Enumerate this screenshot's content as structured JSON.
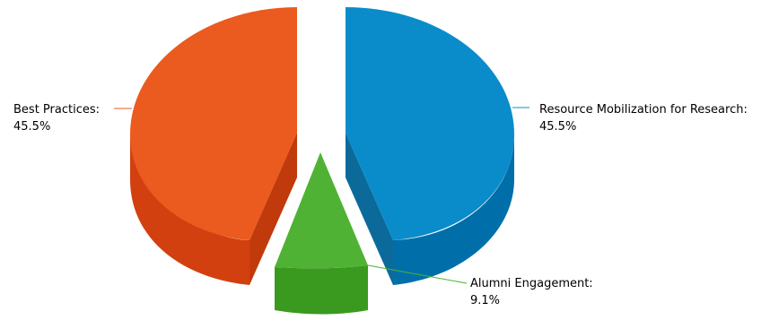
{
  "chart_data": {
    "type": "pie",
    "style": "3d exploded",
    "slices": [
      {
        "label": "Resource Mobilization for Research",
        "value": 45.5,
        "display": "45.5%",
        "color": "#0a8ccb",
        "side_color": "#006fa9"
      },
      {
        "label": "Alumni Engagement",
        "value": 9.1,
        "display": "9.1%",
        "color": "#4fb234",
        "side_color": "#3a9a1f"
      },
      {
        "label": "Best Practices",
        "value": 45.5,
        "display": "45.5%",
        "color": "#eb5a1e",
        "side_color": "#d24010"
      }
    ]
  },
  "labels": {
    "resource": {
      "name": "Resource Mobilization for Research:",
      "value": "45.5%"
    },
    "alumni": {
      "name": "Alumni Engagement:",
      "value": "9.1%"
    },
    "best": {
      "name": "Best Practices:",
      "value": "45.5%"
    }
  }
}
